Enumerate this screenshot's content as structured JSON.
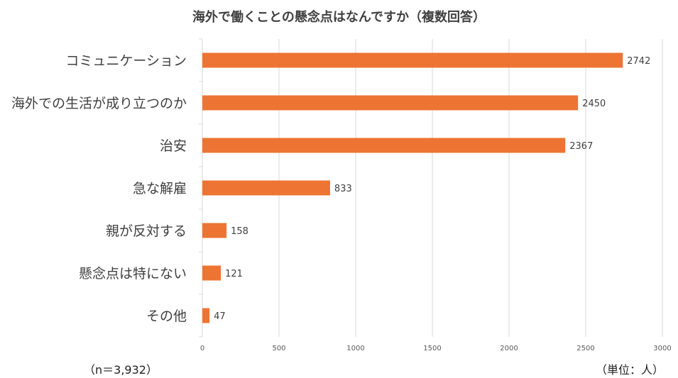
{
  "chart_data": {
    "type": "bar",
    "orientation": "horizontal",
    "title": "海外で働くことの懸念点はなんですか（複数回答）",
    "categories": [
      "コミュニケーション",
      "海外での生活が成り立つのか",
      "治安",
      "急な解雇",
      "親が反対する",
      "懸念点は特にない",
      "その他"
    ],
    "values": [
      2742,
      2450,
      2367,
      833,
      158,
      121,
      47
    ],
    "xlim": [
      0,
      3000
    ],
    "xticks": [
      0,
      500,
      1000,
      1500,
      2000,
      2500,
      3000
    ],
    "grid": true,
    "bar_color": "#ED7433",
    "xlabel": "",
    "ylabel": ""
  },
  "footnotes": {
    "sample": "（n＝3,932）",
    "unit": "（単位：人）"
  }
}
